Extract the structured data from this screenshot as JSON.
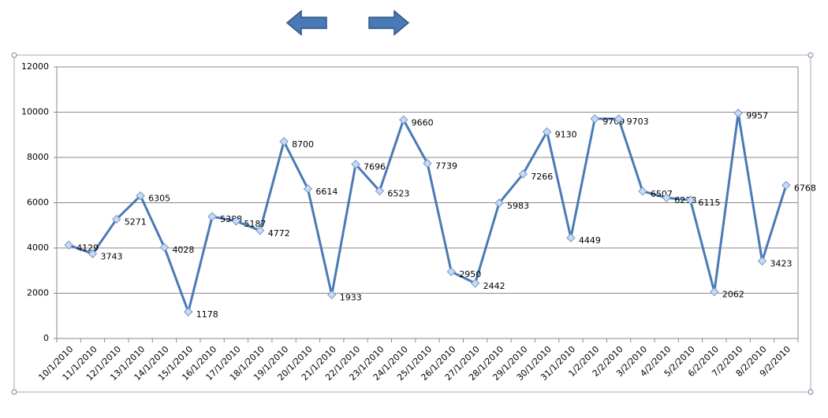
{
  "chart_data": {
    "type": "line",
    "categories": [
      "10/1/2010",
      "11/1/2010",
      "12/1/2010",
      "13/1/2010",
      "14/1/2010",
      "15/1/2010",
      "16/1/2010",
      "17/1/2010",
      "18/1/2010",
      "19/1/2010",
      "20/1/2010",
      "21/1/2010",
      "22/1/2010",
      "23/1/2010",
      "24/1/2010",
      "25/1/2010",
      "26/1/2010",
      "27/1/2010",
      "28/1/2010",
      "29/1/2010",
      "30/1/2010",
      "31/1/2010",
      "1/2/2010",
      "2/2/2010",
      "3/2/2010",
      "4/2/2010",
      "5/2/2010",
      "6/2/2010",
      "7/2/2010",
      "8/2/2010",
      "9/2/2010"
    ],
    "values": [
      4129,
      3743,
      5271,
      6305,
      4028,
      1178,
      5388,
      5187,
      4772,
      8700,
      6614,
      1933,
      7696,
      6523,
      9660,
      7739,
      2950,
      2442,
      5983,
      7266,
      9130,
      4449,
      9709,
      9703,
      6507,
      6218,
      6115,
      2062,
      9957,
      3423,
      6768
    ],
    "color": "#4a7ab5",
    "marker_color": "#c9daf0",
    "ylim": [
      0,
      12000
    ],
    "yticks": [
      0,
      2000,
      4000,
      6000,
      8000,
      10000,
      12000
    ],
    "grid": true
  }
}
